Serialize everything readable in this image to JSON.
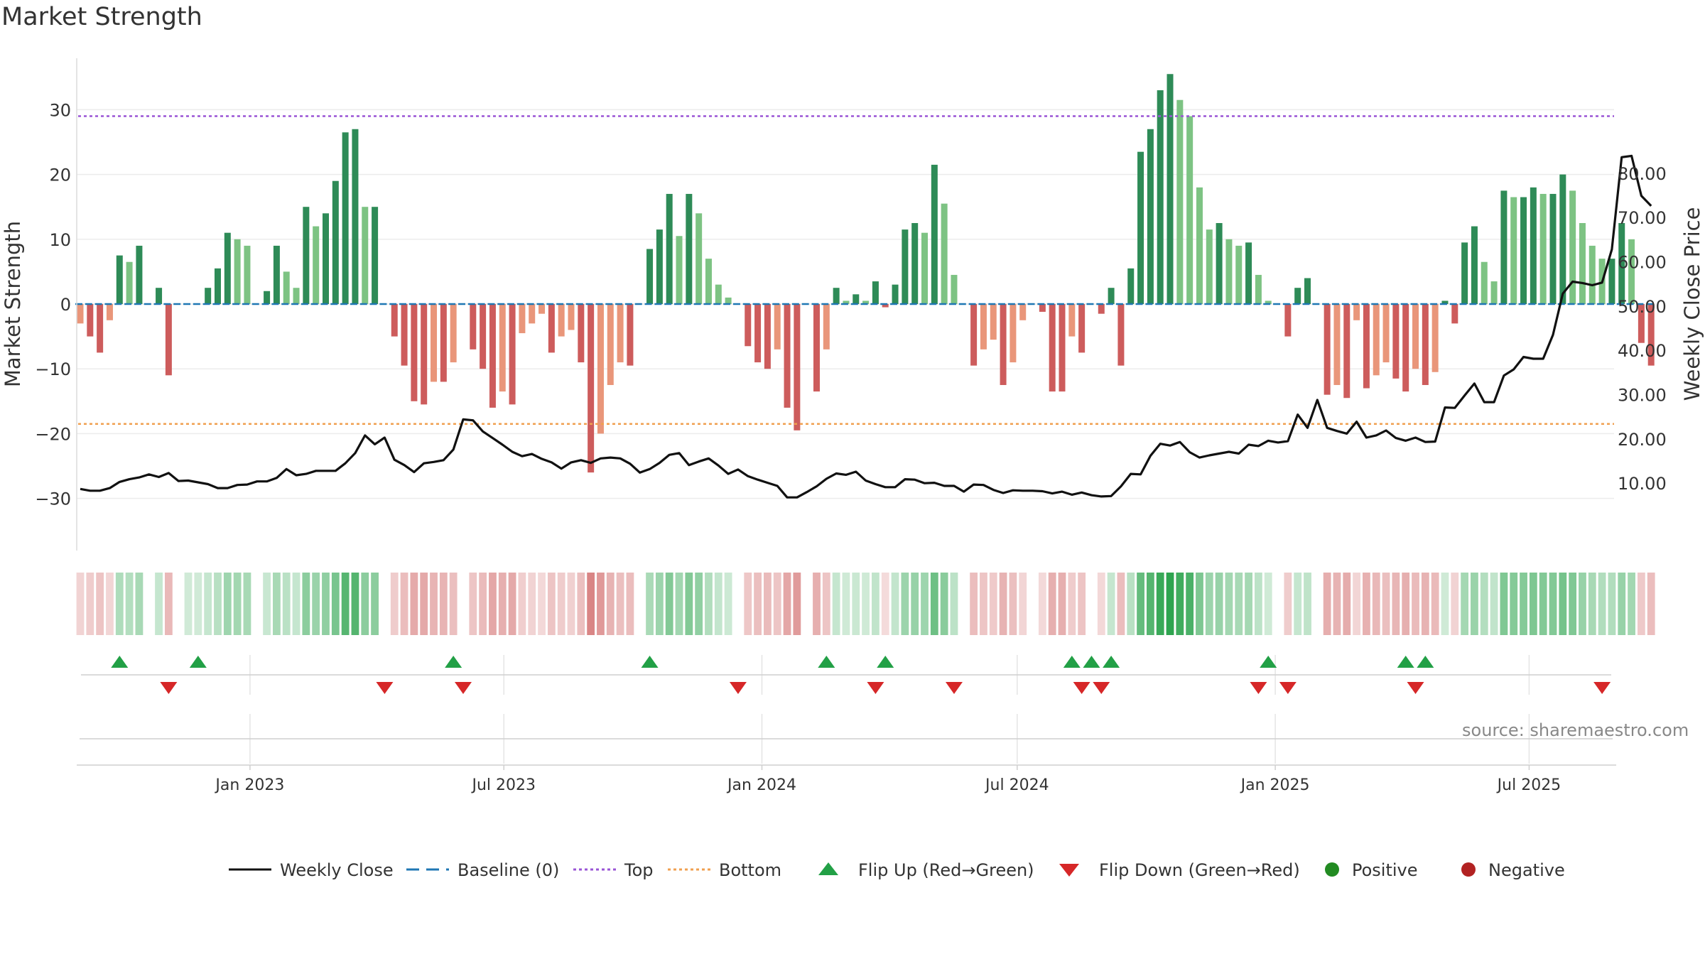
{
  "title": "Market Strength",
  "source": "source: sharemaestro.com",
  "colors": {
    "strong_green": "#2e8b57",
    "light_green": "#7dc383",
    "strong_red": "#cd5c5c",
    "light_red": "#e9967a",
    "close_line": "#111111",
    "baseline": "#1f77b4",
    "top": "#9a55d6",
    "bottom": "#f0a050",
    "flip_up": "#22a046",
    "flip_down": "#d62728",
    "positive": "#228b22",
    "negative": "#b22222"
  },
  "legend": [
    {
      "label": "Weekly Close",
      "kind": "line"
    },
    {
      "label": "Baseline (0)",
      "kind": "dash"
    },
    {
      "label": "Top",
      "kind": "dotted-top"
    },
    {
      "label": "Bottom",
      "kind": "dotted-bottom"
    },
    {
      "label": "Flip Up (Red→Green)",
      "kind": "tri-up"
    },
    {
      "label": "Flip Down (Green→Red)",
      "kind": "tri-down"
    },
    {
      "label": "Positive",
      "kind": "dot-pos"
    },
    {
      "label": "Negative",
      "kind": "dot-neg"
    }
  ],
  "chart_data": {
    "type": "bar",
    "x_start": "2022-09-02",
    "x_step_days": 7,
    "x_ticks": [
      "Jan 2023",
      "Jul 2023",
      "Jan 2024",
      "Jul 2024",
      "Jan 2025",
      "Jul 2025"
    ],
    "x_tick_dates": [
      "2023-01-01",
      "2023-07-01",
      "2024-01-01",
      "2024-07-01",
      "2025-01-01",
      "2025-07-01"
    ],
    "y_left": {
      "label": "Market Strength",
      "ticks": [
        30,
        20,
        10,
        0,
        -10,
        -20,
        -30
      ],
      "tick_labels": [
        "30",
        "20",
        "10",
        "0",
        "−10",
        "−20",
        "−30"
      ],
      "range": [
        -38,
        38
      ]
    },
    "y_right": {
      "label": "Weekly Close Price",
      "ticks": [
        80,
        70,
        60,
        50,
        40,
        30,
        20,
        10
      ],
      "tick_labels": [
        "80.00",
        "70.00",
        "60.00",
        "50.00",
        "40.00",
        "30.00",
        "20.00",
        "10.00"
      ],
      "range": [
        2.5,
        96
      ]
    },
    "top_line": 29,
    "bottom_line": -18.5,
    "baseline": 0,
    "strength": [
      -3,
      -5,
      -7.5,
      -2.5,
      7.5,
      6.5,
      9,
      0,
      2.5,
      -11,
      0,
      0.3,
      0.3,
      2.5,
      5.5,
      11,
      10,
      9,
      0,
      2,
      9,
      5,
      2.5,
      15,
      12,
      14,
      19,
      26.5,
      27,
      15,
      15,
      0,
      -5,
      -9.5,
      -15,
      -15.5,
      -12,
      -12,
      -9,
      0,
      -7,
      -10,
      -16,
      -13.5,
      -15.5,
      -4.5,
      -3,
      -1.5,
      -7.5,
      -5,
      -4,
      -9,
      -26,
      -20,
      -12.5,
      -9,
      -9.5,
      0,
      8.5,
      11.5,
      17,
      10.5,
      17,
      14,
      7,
      3,
      1,
      0,
      -6.5,
      -9,
      -10,
      -7,
      -16,
      -19.5,
      0,
      -13.5,
      -7,
      2.5,
      0.5,
      1.5,
      0.5,
      3.5,
      -0.5,
      3,
      11.5,
      12.5,
      11,
      21.5,
      15.5,
      4.5,
      0,
      -9.5,
      -7,
      -5.5,
      -12.5,
      -9,
      -2.5,
      0,
      -1.2,
      -13.5,
      -13.5,
      -5,
      -7.5,
      0,
      -1.5,
      2.5,
      -9.5,
      5.5,
      23.5,
      27,
      33,
      35.5,
      31.5,
      29,
      18,
      11.5,
      12.5,
      10,
      9,
      9.5,
      4.5,
      0.5,
      0,
      -5,
      2.5,
      4,
      0,
      -14,
      -12.5,
      -14.5,
      -2.5,
      -13,
      -11,
      -9,
      -11.5,
      -13.5,
      -10,
      -12.5,
      -10.5,
      0.5,
      -3,
      9.5,
      12,
      6.5,
      3.5,
      17.5,
      16.5,
      16.5,
      18,
      17,
      17,
      20,
      17.5,
      12.5,
      9,
      7,
      7,
      12.5,
      10,
      -6,
      -9.5
    ],
    "close": [
      8.7,
      8.3,
      8.3,
      8.9,
      10.3,
      10.9,
      11.3,
      12,
      11.4,
      12.3,
      10.5,
      10.6,
      10.2,
      9.8,
      8.9,
      8.9,
      9.6,
      9.7,
      10.4,
      10.4,
      11.2,
      13.2,
      11.8,
      12.1,
      12.8,
      12.8,
      12.8,
      14.5,
      16.8,
      20.8,
      18.8,
      20.3,
      15.3,
      14.1,
      12.5,
      14.5,
      14.8,
      15.2,
      17.6,
      24.4,
      24.2,
      21.7,
      20.2,
      18.7,
      17.1,
      16.1,
      16.6,
      15.5,
      14.7,
      13.3,
      14.7,
      15.2,
      14.6,
      15.6,
      15.8,
      15.6,
      14.4,
      12.4,
      13.2,
      14.6,
      16.4,
      16.8,
      14.1,
      14.9,
      15.6,
      14,
      12.1,
      13.1,
      11.6,
      10.8,
      10.1,
      9.4,
      6.8,
      6.8,
      8,
      9.3,
      11,
      12.2,
      11.9,
      12.6,
      10.6,
      9.8,
      9.1,
      9.1,
      10.9,
      10.8,
      10,
      10.1,
      9.4,
      9.4,
      8.1,
      9.7,
      9.6,
      8.5,
      7.8,
      8.4,
      8.3,
      8.3,
      8.2,
      7.7,
      8.1,
      7.4,
      7.9,
      7.3,
      7,
      7.1,
      9.3,
      12.1,
      12,
      16.2,
      18.9,
      18.5,
      19.3,
      17,
      15.8,
      16.3,
      16.7,
      17.1,
      16.7,
      18.7,
      18.4,
      19.6,
      19.2,
      19.5,
      25.5,
      22.5,
      28.8,
      22.5,
      21.8,
      21.2,
      23.9,
      20.3,
      20.8,
      21.9,
      20.2,
      19.6,
      20.3,
      19.3,
      19.4,
      27.1,
      27,
      29.8,
      32.5,
      28.3,
      28.3,
      34.3,
      35.7,
      38.5,
      38.1,
      38.1,
      43.5,
      52.8,
      55.5,
      55.2,
      54.7,
      55.3,
      62.8,
      83.6,
      83.9,
      74.9,
      72.6
    ],
    "flip_up": [
      4,
      12,
      38,
      58,
      76,
      82,
      101,
      103,
      105,
      121,
      135,
      137
    ],
    "flip_down": [
      9,
      31,
      39,
      67,
      81,
      89,
      102,
      104,
      120,
      123,
      136,
      155
    ]
  }
}
